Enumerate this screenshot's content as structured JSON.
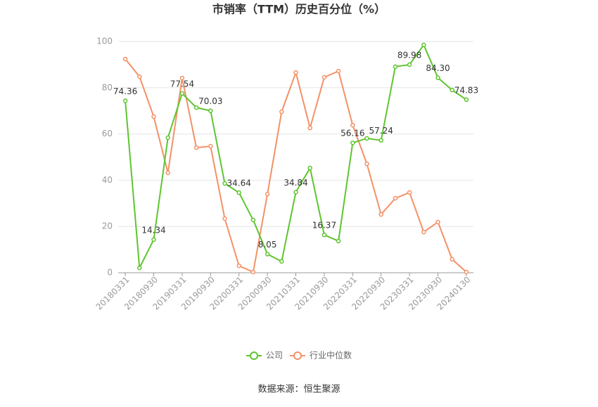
{
  "chart_data": {
    "type": "line",
    "title": "市销率（TTM）历史百分位（%）",
    "source": "数据来源：恒生聚源",
    "categories": [
      "20180331",
      null,
      "20180930",
      null,
      "20190331",
      null,
      "20190930",
      null,
      "20200331",
      null,
      "20200930",
      null,
      "20210331",
      null,
      "20210930",
      null,
      "20220331",
      null,
      "20220930",
      null,
      "20230331",
      null,
      "20230930",
      null,
      "20240130"
    ],
    "series": [
      {
        "name": "公司",
        "color": "#5ec52f",
        "values": [
          74.36,
          2.1,
          14.34,
          58.4,
          77.54,
          71.4,
          70.03,
          38.6,
          34.64,
          22.8,
          8.05,
          4.9,
          34.84,
          45.3,
          16.37,
          13.7,
          56.16,
          58.1,
          57.24,
          89.1,
          89.98,
          98.5,
          84.3,
          79.0,
          74.83
        ],
        "value_labels": [
          "74.36",
          null,
          "14.34",
          null,
          "77.54",
          null,
          "70.03",
          null,
          "34.64",
          null,
          "8.05",
          null,
          "34.84",
          null,
          "16.37",
          null,
          "56.16",
          null,
          "57.24",
          null,
          "89.98",
          null,
          "84.30",
          null,
          "74.83"
        ]
      },
      {
        "name": "行业中位数",
        "color": "#f39168",
        "values": [
          92.4,
          84.8,
          67.5,
          43.2,
          84.2,
          54.1,
          54.7,
          23.4,
          3.0,
          0.3,
          34.0,
          69.6,
          86.6,
          62.6,
          84.5,
          87.2,
          63.8,
          47.1,
          25.2,
          32.2,
          34.7,
          17.6,
          21.9,
          5.8,
          0.3
        ]
      }
    ],
    "ylim": [
      0,
      100
    ],
    "yticks": [
      0,
      20,
      40,
      60,
      80,
      100
    ],
    "grid": true
  }
}
